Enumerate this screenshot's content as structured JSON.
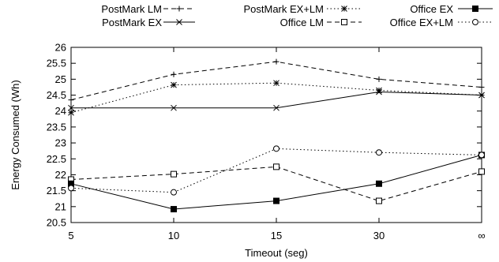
{
  "chart_data": {
    "type": "line",
    "title": "",
    "xlabel": "Timeout (seg)",
    "ylabel": "Energy Consumed (Wh)",
    "categories": [
      "5",
      "10",
      "15",
      "30",
      "∞"
    ],
    "ylim": [
      20.5,
      26
    ],
    "yticks": [
      "20.5",
      "21",
      "21.5",
      "22",
      "22.5",
      "23",
      "23.5",
      "24",
      "24.5",
      "25",
      "25.5",
      "26"
    ],
    "grid": false,
    "legend_position": "top",
    "series": [
      {
        "name": "PostMark LM",
        "values": [
          24.35,
          25.15,
          25.55,
          25.0,
          24.75
        ],
        "dash": "6,4",
        "marker": "plus",
        "color": "#000000"
      },
      {
        "name": "PostMark EX",
        "values": [
          24.1,
          24.1,
          24.1,
          24.6,
          24.5
        ],
        "dash": "",
        "marker": "x",
        "color": "#000000"
      },
      {
        "name": "PostMark EX+LM",
        "values": [
          23.95,
          24.82,
          24.88,
          24.65,
          24.5
        ],
        "dash": "1.5,3",
        "marker": "star",
        "color": "#000000"
      },
      {
        "name": "Office LM",
        "values": [
          21.85,
          22.02,
          22.25,
          21.18,
          22.1
        ],
        "dash": "6,4",
        "marker": "square-open",
        "color": "#000000"
      },
      {
        "name": "Office EX",
        "values": [
          21.72,
          20.92,
          21.18,
          21.72,
          22.62
        ],
        "dash": "",
        "marker": "square-filled",
        "color": "#000000"
      },
      {
        "name": "Office EX+LM",
        "values": [
          21.58,
          21.45,
          22.82,
          22.7,
          22.62
        ],
        "dash": "1.5,3",
        "marker": "circle-open",
        "color": "#000000"
      }
    ]
  }
}
